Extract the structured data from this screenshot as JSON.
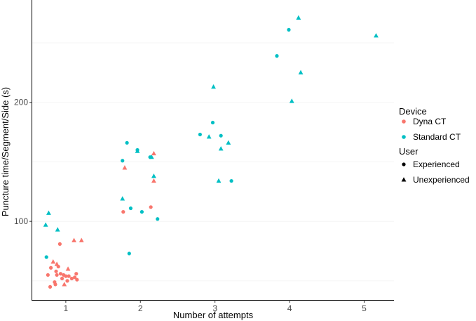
{
  "chart_data": {
    "type": "scatter",
    "title": "",
    "xlabel": "Number of attempts",
    "ylabel": "Puncture time/Segment/Side (s)",
    "xlim": [
      0.55,
      5.4
    ],
    "ylim": [
      34,
      286
    ],
    "x_ticks": [
      1,
      2,
      3,
      4,
      5
    ],
    "y_ticks": [
      100,
      200
    ],
    "grid": true,
    "colors": {
      "Dyna CT": "#F8766D",
      "Standard CT": "#00BFC4"
    },
    "legend": {
      "position": "right",
      "color_title": "Device",
      "color_entries": [
        "Dyna CT",
        "Standard CT"
      ],
      "shape_title": "User",
      "shape_entries": [
        {
          "label": "Experienced",
          "shape": "circle"
        },
        {
          "label": "Unexperienced",
          "shape": "triangle"
        }
      ]
    },
    "series": [
      {
        "device": "Standard CT",
        "user": "Experienced",
        "points": [
          [
            0.74,
            70
          ],
          [
            1.76,
            151
          ],
          [
            1.82,
            166
          ],
          [
            1.85,
            73
          ],
          [
            1.87,
            111
          ],
          [
            1.96,
            160
          ],
          [
            2.02,
            108
          ],
          [
            2.13,
            154
          ],
          [
            2.23,
            102
          ],
          [
            2.8,
            173
          ],
          [
            2.97,
            183
          ],
          [
            3.08,
            172
          ],
          [
            3.22,
            134
          ],
          [
            3.83,
            239
          ],
          [
            3.99,
            261
          ]
        ]
      },
      {
        "device": "Standard CT",
        "user": "Unexperienced",
        "points": [
          [
            0.73,
            97
          ],
          [
            0.77,
            107
          ],
          [
            0.89,
            93
          ],
          [
            1.76,
            119
          ],
          [
            1.96,
            159
          ],
          [
            2.15,
            154
          ],
          [
            2.18,
            138
          ],
          [
            2.92,
            171
          ],
          [
            2.98,
            213
          ],
          [
            3.05,
            134
          ],
          [
            3.08,
            161
          ],
          [
            3.18,
            166
          ],
          [
            4.03,
            201
          ],
          [
            4.12,
            271
          ],
          [
            4.15,
            225
          ],
          [
            5.16,
            256
          ]
        ]
      },
      {
        "device": "Dyna CT",
        "user": "Experienced",
        "points": [
          [
            0.76,
            55
          ],
          [
            0.79,
            45
          ],
          [
            0.8,
            61
          ],
          [
            0.85,
            49
          ],
          [
            0.86,
            47
          ],
          [
            0.87,
            58
          ],
          [
            0.88,
            55
          ],
          [
            0.9,
            62
          ],
          [
            0.92,
            81
          ],
          [
            0.93,
            56
          ],
          [
            0.95,
            52
          ],
          [
            0.97,
            55
          ],
          [
            1.0,
            54
          ],
          [
            1.02,
            50
          ],
          [
            1.04,
            54
          ],
          [
            1.08,
            52
          ],
          [
            1.12,
            53
          ],
          [
            1.14,
            56
          ],
          [
            1.15,
            51
          ],
          [
            1.77,
            108
          ],
          [
            2.14,
            112
          ]
        ]
      },
      {
        "device": "Dyna CT",
        "user": "Unexperienced",
        "points": [
          [
            0.83,
            66
          ],
          [
            0.88,
            64
          ],
          [
            0.98,
            47
          ],
          [
            1.03,
            60
          ],
          [
            1.11,
            84
          ],
          [
            1.21,
            84
          ],
          [
            1.79,
            145
          ],
          [
            2.18,
            134
          ],
          [
            2.18,
            157
          ]
        ]
      }
    ]
  }
}
